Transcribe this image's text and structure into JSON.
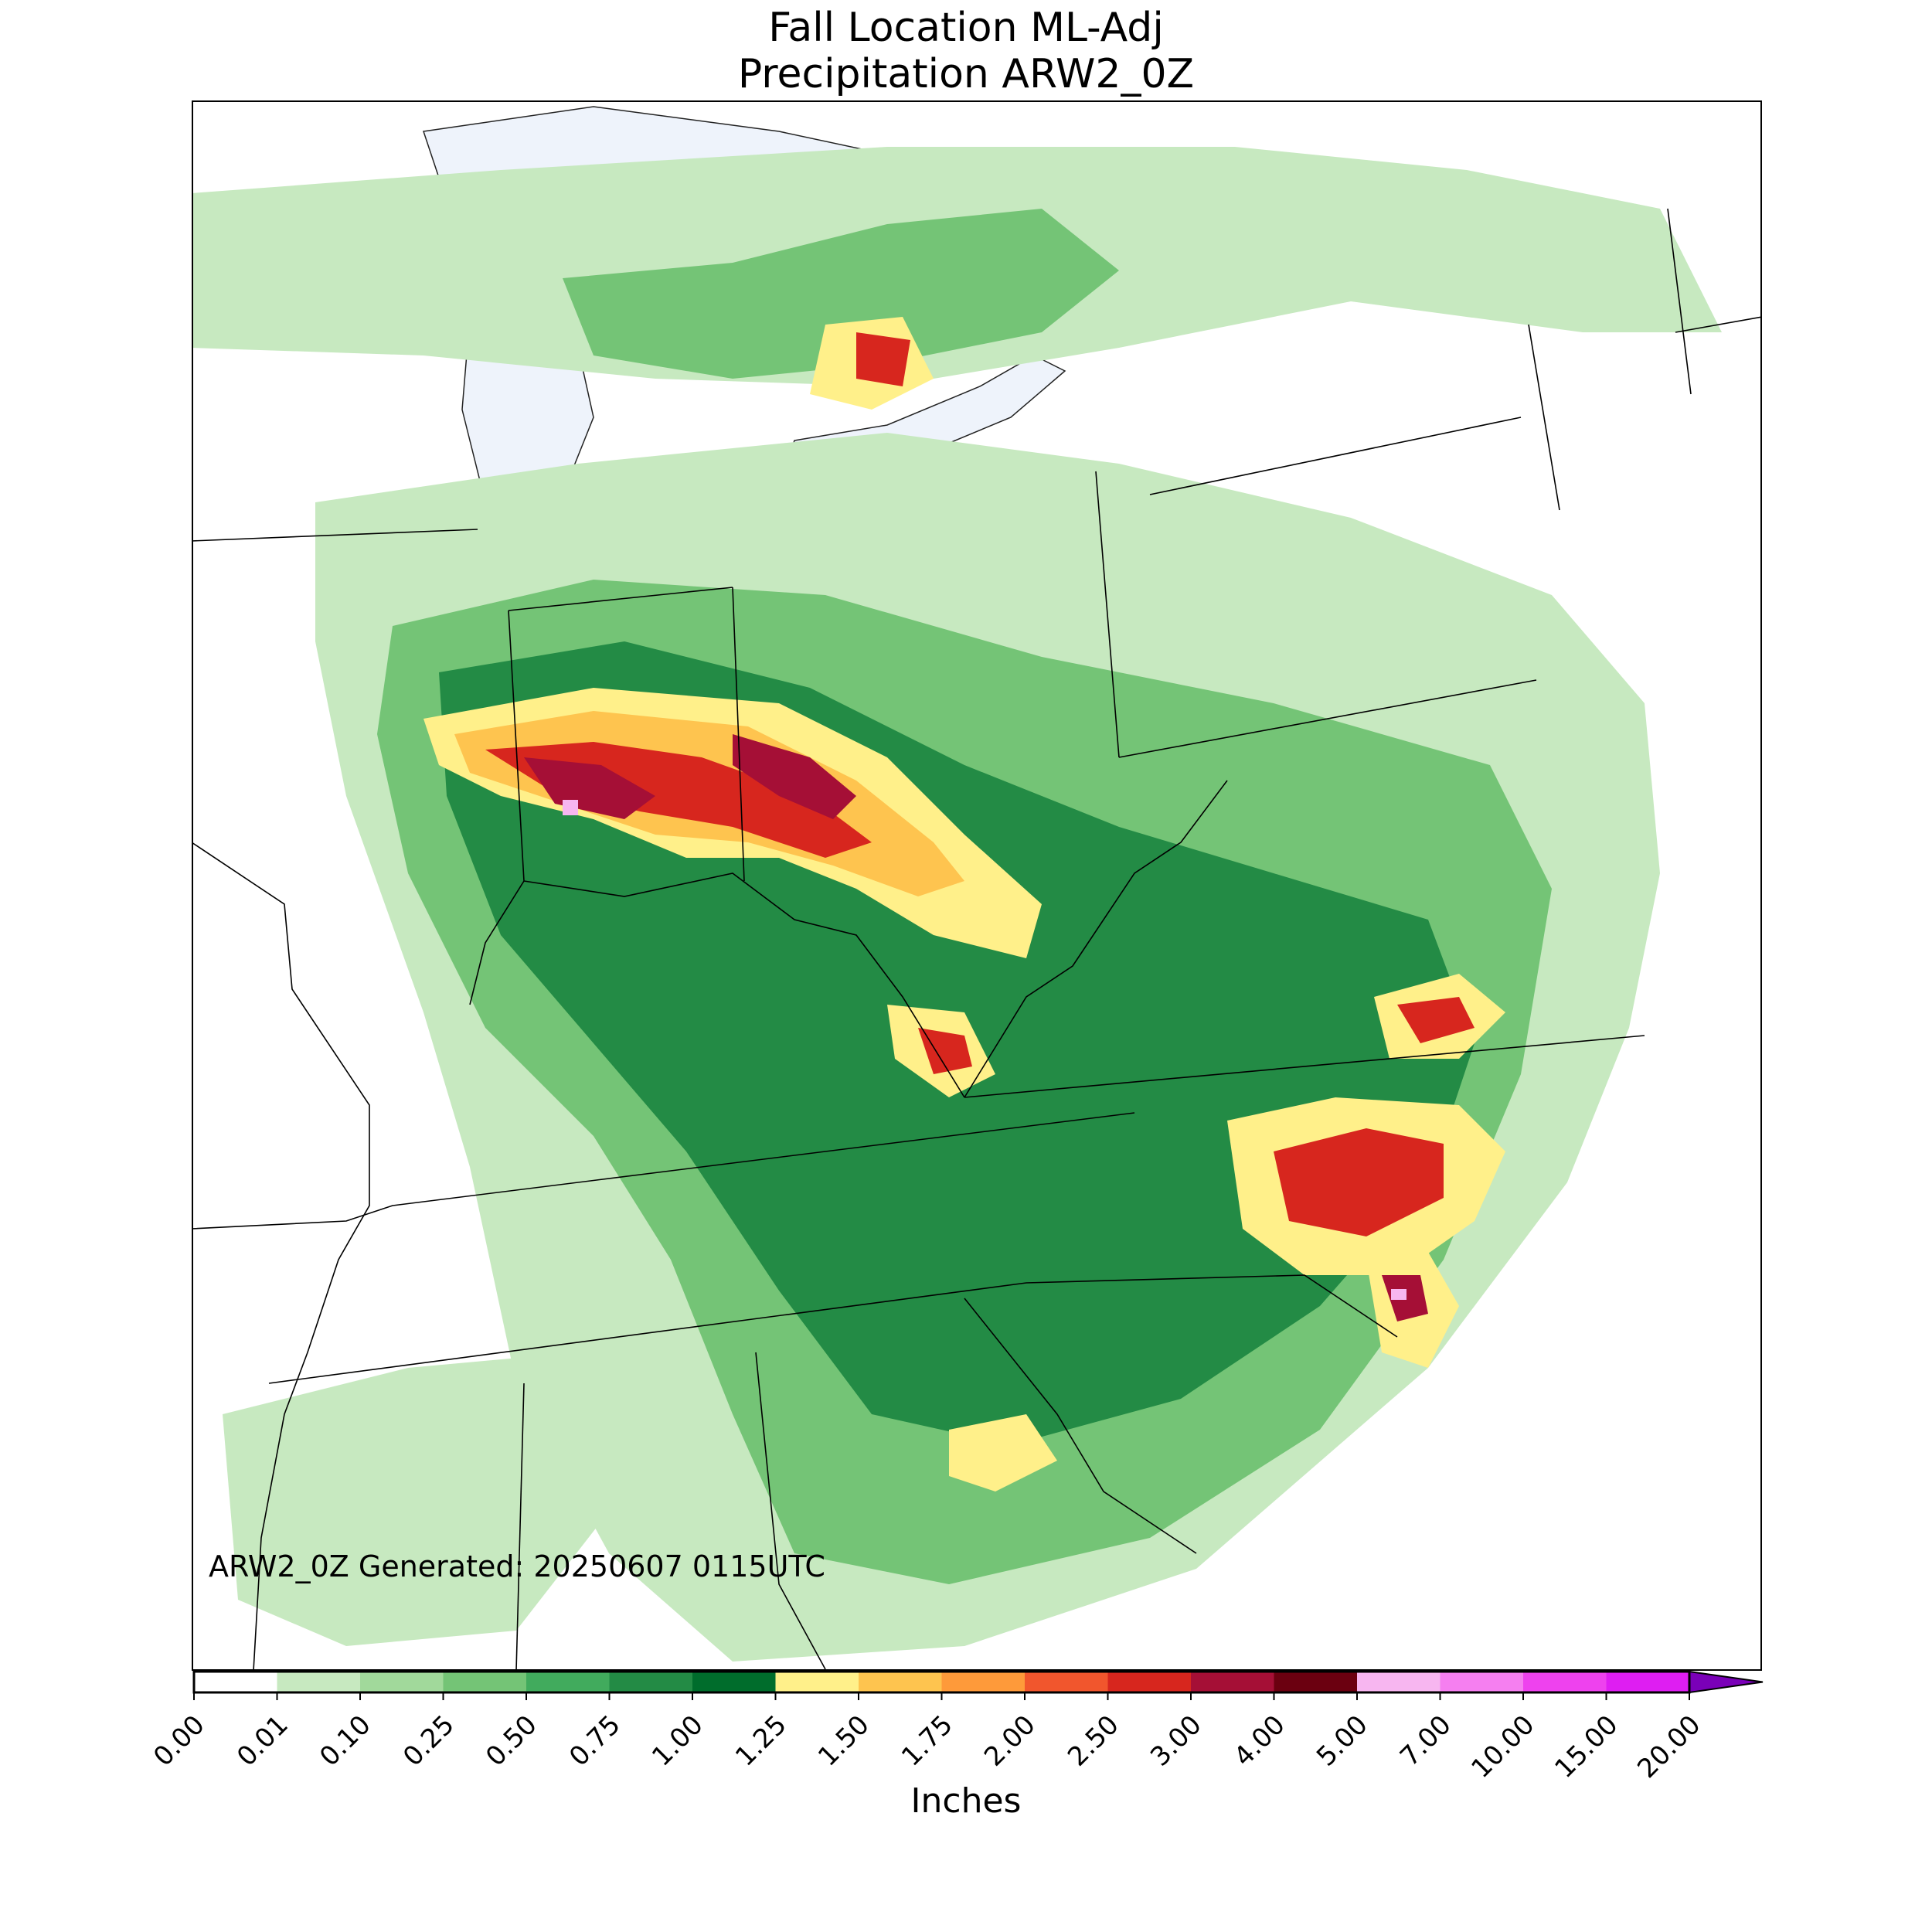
{
  "title": {
    "line1": "Fall Location ML-Adj",
    "line2": "Precipitation ARW2_0Z"
  },
  "annotation": "ARW2_0Z Generated: 20250607 0115UTC",
  "colorbar": {
    "label": "Inches",
    "ticks": [
      "0.00",
      "0.01",
      "0.10",
      "0.25",
      "0.50",
      "0.75",
      "1.00",
      "1.25",
      "1.50",
      "1.75",
      "2.00",
      "2.50",
      "3.00",
      "4.00",
      "5.00",
      "7.00",
      "10.00",
      "15.00",
      "20.00"
    ],
    "colors": [
      "#ffffff",
      "#c7e9c0",
      "#a1d99b",
      "#74c476",
      "#41ab5d",
      "#238b45",
      "#006d2c",
      "#fff08a",
      "#fec44f",
      "#fe9a3a",
      "#f1562d",
      "#d7261e",
      "#a50f36",
      "#6b0010",
      "#f7b6f0",
      "#f57ff0",
      "#ee42ee",
      "#de1ef2",
      "#b30fe6",
      "#7a00b8"
    ],
    "extend": "max"
  },
  "map_colors": {
    "water": "#eef3fb",
    "border": "#000000"
  }
}
